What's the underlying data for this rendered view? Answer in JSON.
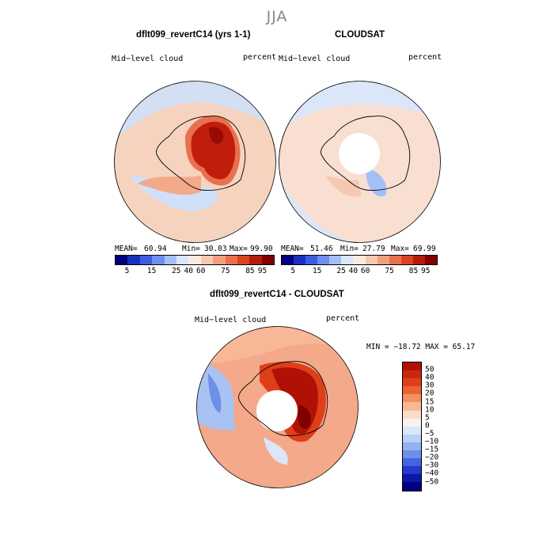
{
  "season": "JJA",
  "panels": {
    "model": {
      "title": "dflt099_revertC14 (yrs 1-1)",
      "field_label": "Mid−level cloud",
      "units": "percent",
      "mean_label": "MEAN=",
      "mean": "60.94",
      "min_label": "Min=",
      "min": "30.03",
      "max_label": "Max=",
      "max": "99.90"
    },
    "obs": {
      "title": "CLOUDSAT",
      "field_label": "Mid−level cloud",
      "units": "percent",
      "mean_label": "MEAN=",
      "mean": "51.46",
      "min_label": "Min=",
      "min": "27.79",
      "max_label": "Max=",
      "max": "69.99"
    },
    "diff": {
      "title": "dflt099_revertC14 - CLOUDSAT",
      "field_label": "Mid−level cloud",
      "units": "percent",
      "range_text": "MIN = −18.72 MAX =  65.17"
    }
  },
  "colorbar_abs": {
    "colors": [
      "#000080",
      "#1a2fbf",
      "#3b5ee0",
      "#6f8ff0",
      "#a4bff7",
      "#d8e7fb",
      "#fbeadf",
      "#f6c8b1",
      "#f0a07e",
      "#e8704f",
      "#d9441f",
      "#b51c0a",
      "#800000"
    ],
    "tick_labels": [
      "5",
      "15",
      "25",
      "40",
      "60",
      "75",
      "85",
      "95"
    ]
  },
  "colorbar_diff": {
    "colors": [
      "#b01106",
      "#c8280d",
      "#de3f19",
      "#ec6331",
      "#f38f62",
      "#f8b898",
      "#fbdcc9",
      "#f6f3ef",
      "#dbe7f9",
      "#b9d1f4",
      "#93b2ee",
      "#6d8fe7",
      "#4464df",
      "#2439cc",
      "#0b19a8",
      "#000080"
    ],
    "tick_labels": [
      "50",
      "40",
      "30",
      "20",
      "15",
      "10",
      "5",
      "0",
      "−5",
      "−10",
      "−15",
      "−20",
      "−30",
      "−40",
      "−50"
    ]
  },
  "map_colors": {
    "model": {
      "ocean": "#f6d3bf",
      "low": "#cfe0f8",
      "high": "#c11d0c",
      "mid": "#e8704f"
    },
    "obs": {
      "ocean": "#f8dfd1",
      "low": "#c8daf6",
      "pole": "#ffffff"
    },
    "diff": {
      "ocean": "#f3a98a",
      "low": "#a8c2f2",
      "high": "#b01106",
      "pole": "#ffffff"
    }
  }
}
